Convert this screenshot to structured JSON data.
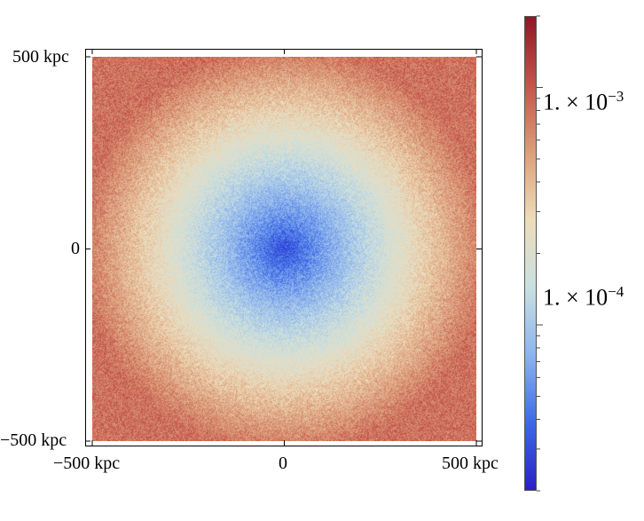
{
  "chart_data": {
    "type": "heatmap",
    "title": "",
    "colormap": "blue-white-red (diverging, log scale)",
    "colors": [
      "#2a20c8",
      "#3c6ae6",
      "#8db4ee",
      "#c9e0e0",
      "#eedcba",
      "#dc9e7a",
      "#c4544a",
      "#8e1826"
    ],
    "x_axis": {
      "range": [
        -500,
        500
      ],
      "unit": "kpc",
      "ticks": [
        {
          "value": -500,
          "label": "−500 kpc"
        },
        {
          "value": 0,
          "label": "0"
        },
        {
          "value": 500,
          "label": "500 kpc"
        }
      ]
    },
    "y_axis": {
      "range": [
        -500,
        500
      ],
      "unit": "kpc",
      "ticks": [
        {
          "value": 500,
          "label": "500 kpc"
        },
        {
          "value": 0,
          "label": "0"
        },
        {
          "value": -500,
          "label": "−500 kpc"
        }
      ]
    },
    "colorbar": {
      "scale": "log",
      "range": [
        2e-05,
        0.002
      ],
      "labels": [
        {
          "value": 0.001,
          "mantissa": "1. × 10",
          "exponent": "−3"
        },
        {
          "value": 0.0001,
          "mantissa": "1. × 10",
          "exponent": "−4"
        }
      ]
    },
    "field": {
      "description_center_value": 3e-05,
      "edge_value": 0.0008,
      "pattern": "radially increasing from center with fine-grained noise"
    }
  }
}
